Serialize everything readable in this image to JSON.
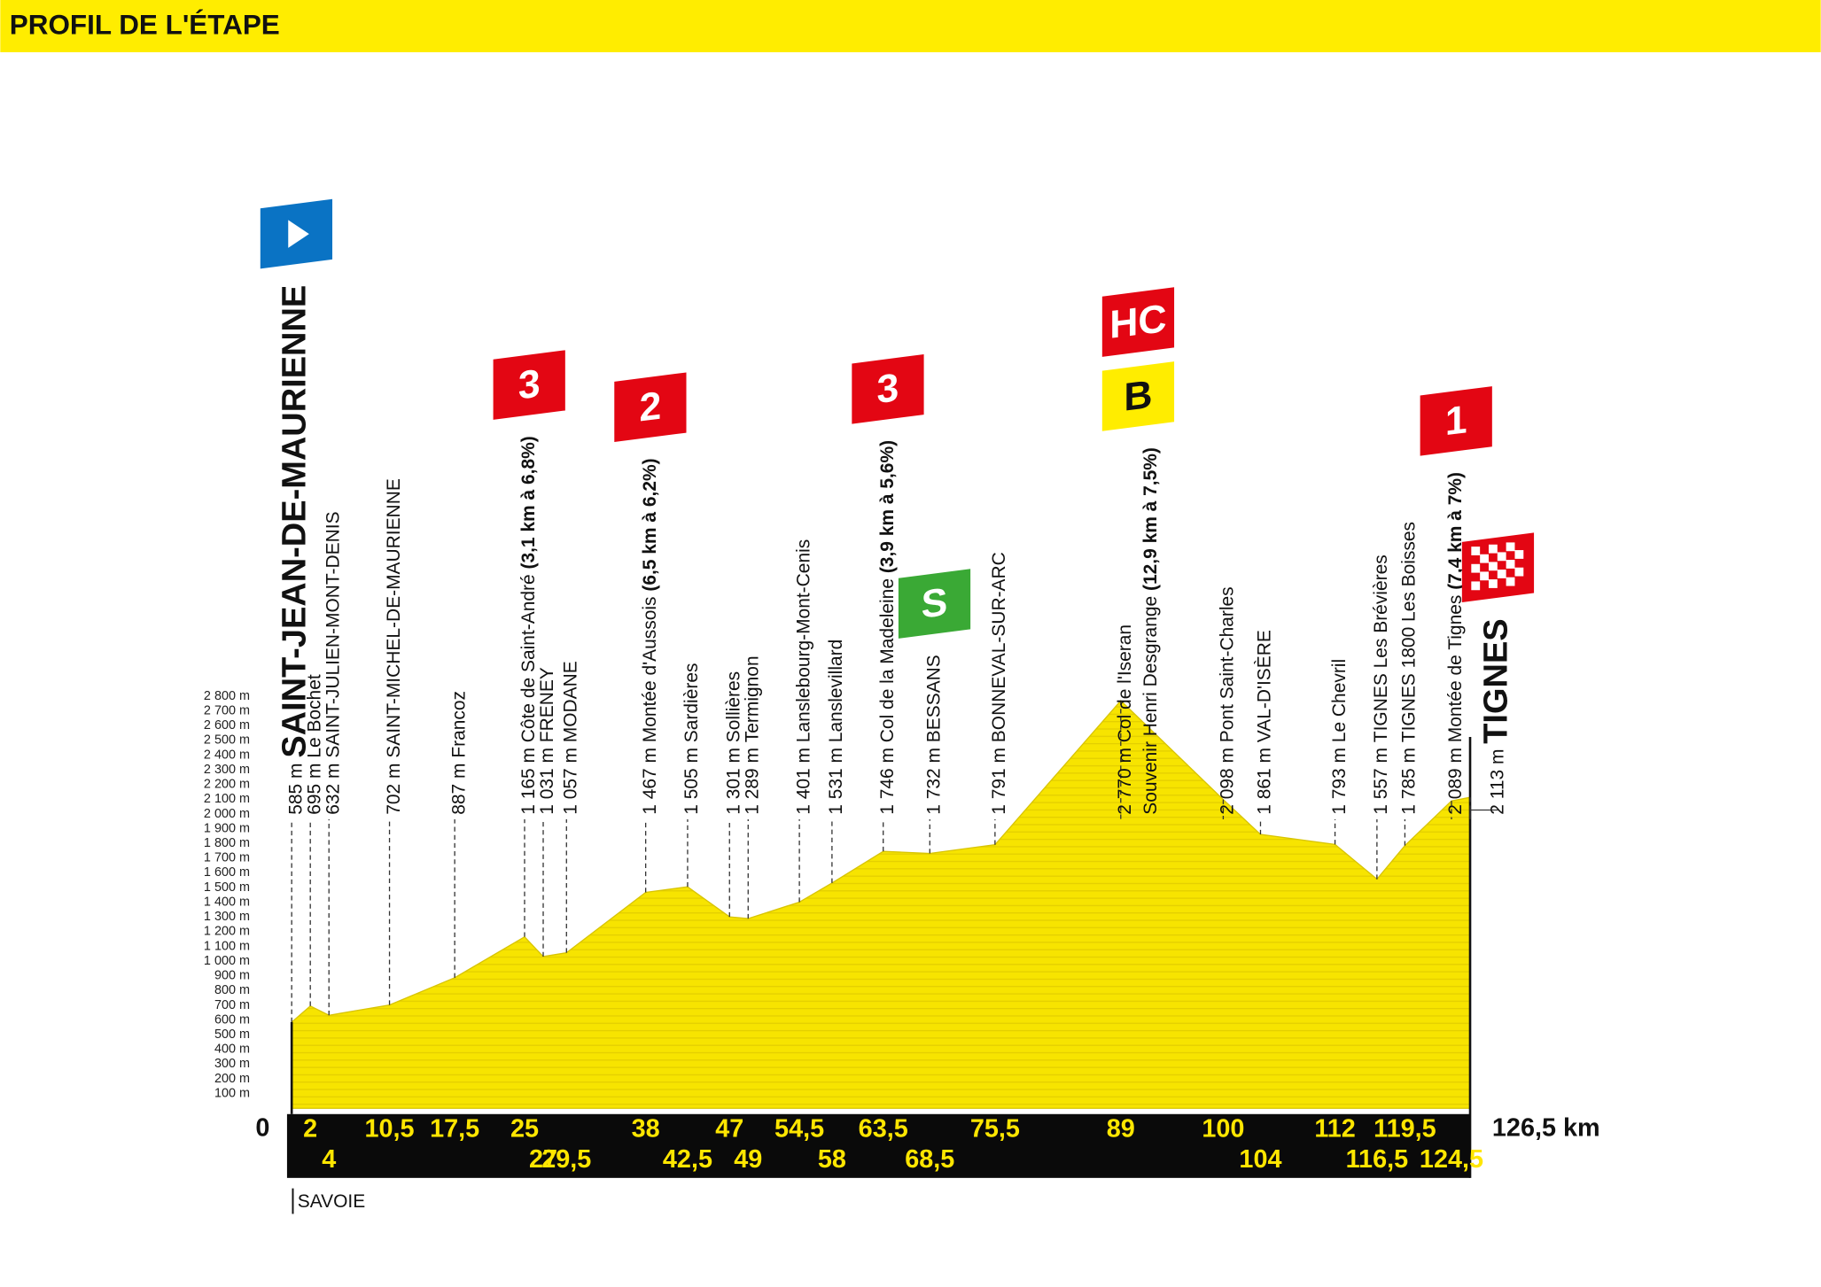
{
  "title": "PROFIL DE L'ÉTAPE",
  "footer": "SAVOIE",
  "chart_data": {
    "type": "area",
    "x": [
      0,
      2,
      4,
      10.5,
      17.5,
      25,
      27,
      29.5,
      38,
      42.5,
      47,
      49,
      54.5,
      58,
      63.5,
      68.5,
      75.5,
      89,
      100,
      104,
      112,
      116.5,
      119.5,
      124.5,
      126.5
    ],
    "x_labels": [
      "0",
      "2",
      "4",
      "10,5",
      "17,5",
      "25",
      "27",
      "29,5",
      "38",
      "42,5",
      "47",
      "49",
      "54,5",
      "58",
      "63,5",
      "68,5",
      "75,5",
      "89",
      "100",
      "104",
      "112",
      "116,5",
      "119,5",
      "124,5",
      "126,5 km"
    ],
    "values": [
      585,
      695,
      632,
      702,
      887,
      1165,
      1031,
      1057,
      1467,
      1505,
      1301,
      1289,
      1401,
      1531,
      1746,
      1732,
      1791,
      2770,
      2098,
      1861,
      1793,
      1557,
      1785,
      2089,
      2113
    ],
    "value_labels": [
      "585 m",
      "695 m",
      "632 m",
      "702 m",
      "887 m",
      "1 165 m",
      "1 031 m",
      "1 057 m",
      "1 467 m",
      "1 505 m",
      "1 301 m",
      "1 289 m",
      "1 401 m",
      "1 531 m",
      "1 746 m",
      "1 732 m",
      "1 791 m",
      "2 770 m",
      "2 098 m",
      "1 861 m",
      "1 793 m",
      "1 557 m",
      "1 785 m",
      "2 089 m",
      "2 113 m"
    ],
    "names": [
      "SAINT-JEAN-DE-MAURIENNE",
      "Le Bochet",
      "SAINT-JULIEN-MONT-DENIS",
      "SAINT-MICHEL-DE-MAURIENNE",
      "Francoz",
      "Côte de Saint-André",
      "FRENEY",
      "MODANE",
      "Montée d'Aussois",
      "Sardières",
      "Sollières",
      "Termignon",
      "Lanslebourg-Mont-Cenis",
      "Lanslevillard",
      "Col de la Madeleine",
      "BESSANS",
      "BONNEVAL-SUR-ARC",
      "Col de l'Iseran",
      "Pont Saint-Charles",
      "VAL-D'ISÈRE",
      "Le Chevril",
      "TIGNES Les Brévières",
      "TIGNES 1800 Les Boisses",
      "Montée de Tignes",
      "TIGNES"
    ],
    "second_line": [
      null,
      null,
      null,
      null,
      null,
      null,
      null,
      null,
      null,
      null,
      null,
      null,
      null,
      null,
      null,
      null,
      null,
      "Souvenir Henri Desgrange",
      null,
      null,
      null,
      null,
      null,
      null,
      null
    ],
    "details": [
      null,
      null,
      null,
      null,
      null,
      "(3,1 km à 6,8%)",
      null,
      null,
      "(6,5 km à 6,2%)",
      null,
      null,
      null,
      null,
      null,
      "(3,9 km à 5,6%)",
      null,
      null,
      "(12,9 km à 7,5%)",
      null,
      null,
      null,
      null,
      null,
      "(7,4 km à 7%)",
      null
    ],
    "climb_category": [
      null,
      null,
      null,
      null,
      null,
      "3",
      null,
      null,
      "2",
      null,
      null,
      null,
      null,
      null,
      "3",
      null,
      null,
      "HC",
      null,
      null,
      null,
      null,
      null,
      "1",
      null
    ],
    "bonus": [
      null,
      null,
      null,
      null,
      null,
      null,
      null,
      null,
      null,
      null,
      null,
      null,
      null,
      null,
      null,
      null,
      null,
      "B",
      null,
      null,
      null,
      null,
      null,
      null,
      null
    ],
    "sprint": [
      null,
      null,
      null,
      null,
      null,
      null,
      null,
      null,
      null,
      null,
      null,
      null,
      null,
      null,
      null,
      "S",
      null,
      null,
      null,
      null,
      null,
      null,
      null,
      null,
      null
    ],
    "color": "#f7e400",
    "xlim": [
      0,
      126.5
    ],
    "ylim": [
      0,
      2900
    ],
    "yticks": [
      {
        "value": 100,
        "label": "100 m"
      },
      {
        "value": 200,
        "label": "200 m"
      },
      {
        "value": 300,
        "label": "300 m"
      },
      {
        "value": 400,
        "label": "400 m"
      },
      {
        "value": 500,
        "label": "500 m"
      },
      {
        "value": 600,
        "label": "600 m"
      },
      {
        "value": 700,
        "label": "700 m"
      },
      {
        "value": 800,
        "label": "800 m"
      },
      {
        "value": 900,
        "label": "900 m"
      },
      {
        "value": 1000,
        "label": "1 000 m"
      },
      {
        "value": 1100,
        "label": "1 100 m"
      },
      {
        "value": 1200,
        "label": "1 200 m"
      },
      {
        "value": 1300,
        "label": "1 300 m"
      },
      {
        "value": 1400,
        "label": "1 400 m"
      },
      {
        "value": 1500,
        "label": "1 500 m"
      },
      {
        "value": 1600,
        "label": "1 600 m"
      },
      {
        "value": 1700,
        "label": "1 700 m"
      },
      {
        "value": 1800,
        "label": "1 800 m"
      },
      {
        "value": 1900,
        "label": "1 900 m"
      },
      {
        "value": 2000,
        "label": "2 000 m"
      },
      {
        "value": 2100,
        "label": "2 100 m"
      },
      {
        "value": 2200,
        "label": "2 200 m"
      },
      {
        "value": 2300,
        "label": "2 300 m"
      },
      {
        "value": 2400,
        "label": "2 400 m"
      },
      {
        "value": 2500,
        "label": "2 500 m"
      },
      {
        "value": 2600,
        "label": "2 600 m"
      },
      {
        "value": 2700,
        "label": "2 700 m"
      },
      {
        "value": 2800,
        "label": "2 800 m"
      }
    ]
  }
}
